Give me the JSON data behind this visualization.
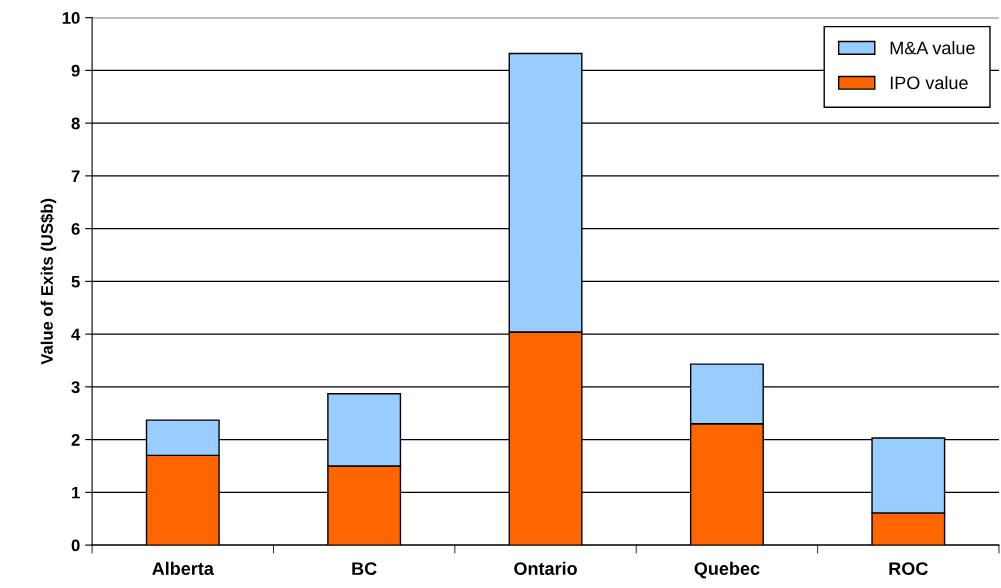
{
  "chart_data": {
    "type": "bar",
    "stacked": true,
    "ylabel": "Value of Exits (US$b)",
    "categories": [
      "Alberta",
      "BC",
      "Ontario",
      "Quebec",
      "ROC"
    ],
    "series": [
      {
        "name": "IPO value",
        "color": "#ff6600",
        "values": [
          1.7,
          1.5,
          4.04,
          2.3,
          0.61
        ]
      },
      {
        "name": "M&A value",
        "color": "#99ccff",
        "values": [
          0.67,
          1.37,
          5.28,
          1.13,
          1.42
        ]
      }
    ],
    "ylim": [
      0,
      10
    ],
    "yticks": [
      0,
      1,
      2,
      3,
      4,
      5,
      6,
      7,
      8,
      9,
      10
    ],
    "grid": "y",
    "legend": "top right"
  }
}
